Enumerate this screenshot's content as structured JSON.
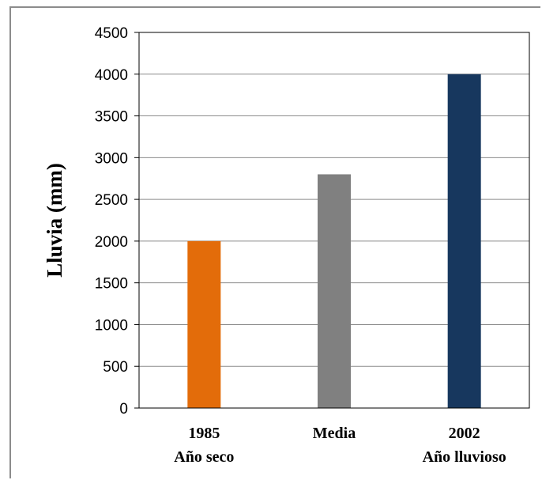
{
  "chart_data": {
    "type": "bar",
    "categories": [
      {
        "line1": "1985",
        "line2": "Año seco"
      },
      {
        "line1": "Media",
        "line2": ""
      },
      {
        "line1": "2002",
        "line2": "Año lluvioso"
      }
    ],
    "values": [
      2000,
      2800,
      4000
    ],
    "colors": [
      "#e36c0a",
      "#808080",
      "#17375e"
    ],
    "title": "",
    "xlabel": "",
    "ylabel": "Lluvia (mm)",
    "ylim": [
      0,
      4500
    ],
    "yticks": [
      0,
      500,
      1000,
      1500,
      2000,
      2500,
      3000,
      3500,
      4000,
      4500
    ],
    "grid": true,
    "legend": "none"
  }
}
